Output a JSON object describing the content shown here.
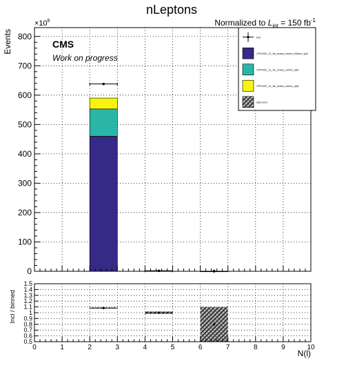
{
  "title": "nLeptons",
  "lumi_label": {
    "prefix": "Normalized to ",
    "L": "L",
    "sub": "int",
    "value": " = 150 fb",
    "sup": "-1"
  },
  "cms_label": "CMS",
  "cms_sublabel": "Work on progress",
  "legend": [
    {
      "label": "Incl",
      "kind": "marker"
    },
    {
      "label": "CP5=B2_11_ttz_mass_comm_N3sec_sp0",
      "kind": "fill",
      "color": "#352a86"
    },
    {
      "label": "CP5=B2_11_ttz_mass_comm_sp0",
      "kind": "fill",
      "color": "#2ab6a7"
    },
    {
      "label": "CP5=B2_11_ttz_mass_comm_sp8",
      "kind": "fill",
      "color": "#f7f40f"
    },
    {
      "label": "stat error",
      "kind": "hatch"
    }
  ],
  "chart_data": [
    {
      "type": "bar",
      "stacked": true,
      "ylabel": "Events",
      "y_multiplier": "×10",
      "y_multiplier_exp": "6",
      "ylim": [
        0,
        830
      ],
      "xlim": [
        0,
        10
      ],
      "yticks": [
        0,
        100,
        200,
        300,
        400,
        500,
        600,
        700,
        800
      ],
      "grid": true,
      "bin_edges": [
        0,
        1,
        2,
        3,
        4,
        5,
        6,
        7,
        8,
        9,
        10
      ],
      "series": [
        {
          "color": "#352a86",
          "values": [
            0,
            0,
            460,
            0,
            1.5,
            0,
            0.4,
            0,
            0,
            0
          ]
        },
        {
          "color": "#2ab6a7",
          "values": [
            0,
            0,
            93,
            0,
            0.3,
            0,
            0.1,
            0,
            0,
            0
          ]
        },
        {
          "color": "#f7f40f",
          "values": [
            0,
            0,
            37,
            0,
            0.1,
            0,
            0.05,
            0,
            0,
            0
          ]
        }
      ],
      "points": [
        {
          "x": 2.5,
          "y": 638,
          "xerr": 0.5
        },
        {
          "x": 4.5,
          "y": 1.5,
          "xerr": 0.5
        },
        {
          "x": 6.5,
          "y": 0.4,
          "xerr": 0.0
        }
      ]
    },
    {
      "type": "scatter",
      "ylabel": "Incl / binned",
      "xlabel": "N(l)",
      "ylim": [
        0.5,
        1.5
      ],
      "xlim": [
        0,
        10
      ],
      "xticks": [
        0,
        1,
        2,
        3,
        4,
        5,
        6,
        7,
        8,
        9,
        10
      ],
      "yticks": [
        0.5,
        0.6,
        0.7,
        0.8,
        0.9,
        1,
        1.1,
        1.2,
        1.3,
        1.4,
        1.5
      ],
      "grid": true,
      "points": [
        {
          "x": 2.5,
          "y": 1.08,
          "xerr": 0.5
        },
        {
          "x": 4.5,
          "y": 1.0,
          "xerr": 0.5
        },
        {
          "x": 6.5,
          "y": 0.8,
          "xerr": 0.0
        }
      ],
      "error_bands": [
        {
          "x0": 2,
          "x1": 3,
          "y0": 1.07,
          "y1": 1.09
        },
        {
          "x0": 4,
          "x1": 5,
          "y0": 0.98,
          "y1": 1.02
        },
        {
          "x0": 6,
          "x1": 7,
          "y0": 0.5,
          "y1": 1.1
        }
      ]
    }
  ]
}
